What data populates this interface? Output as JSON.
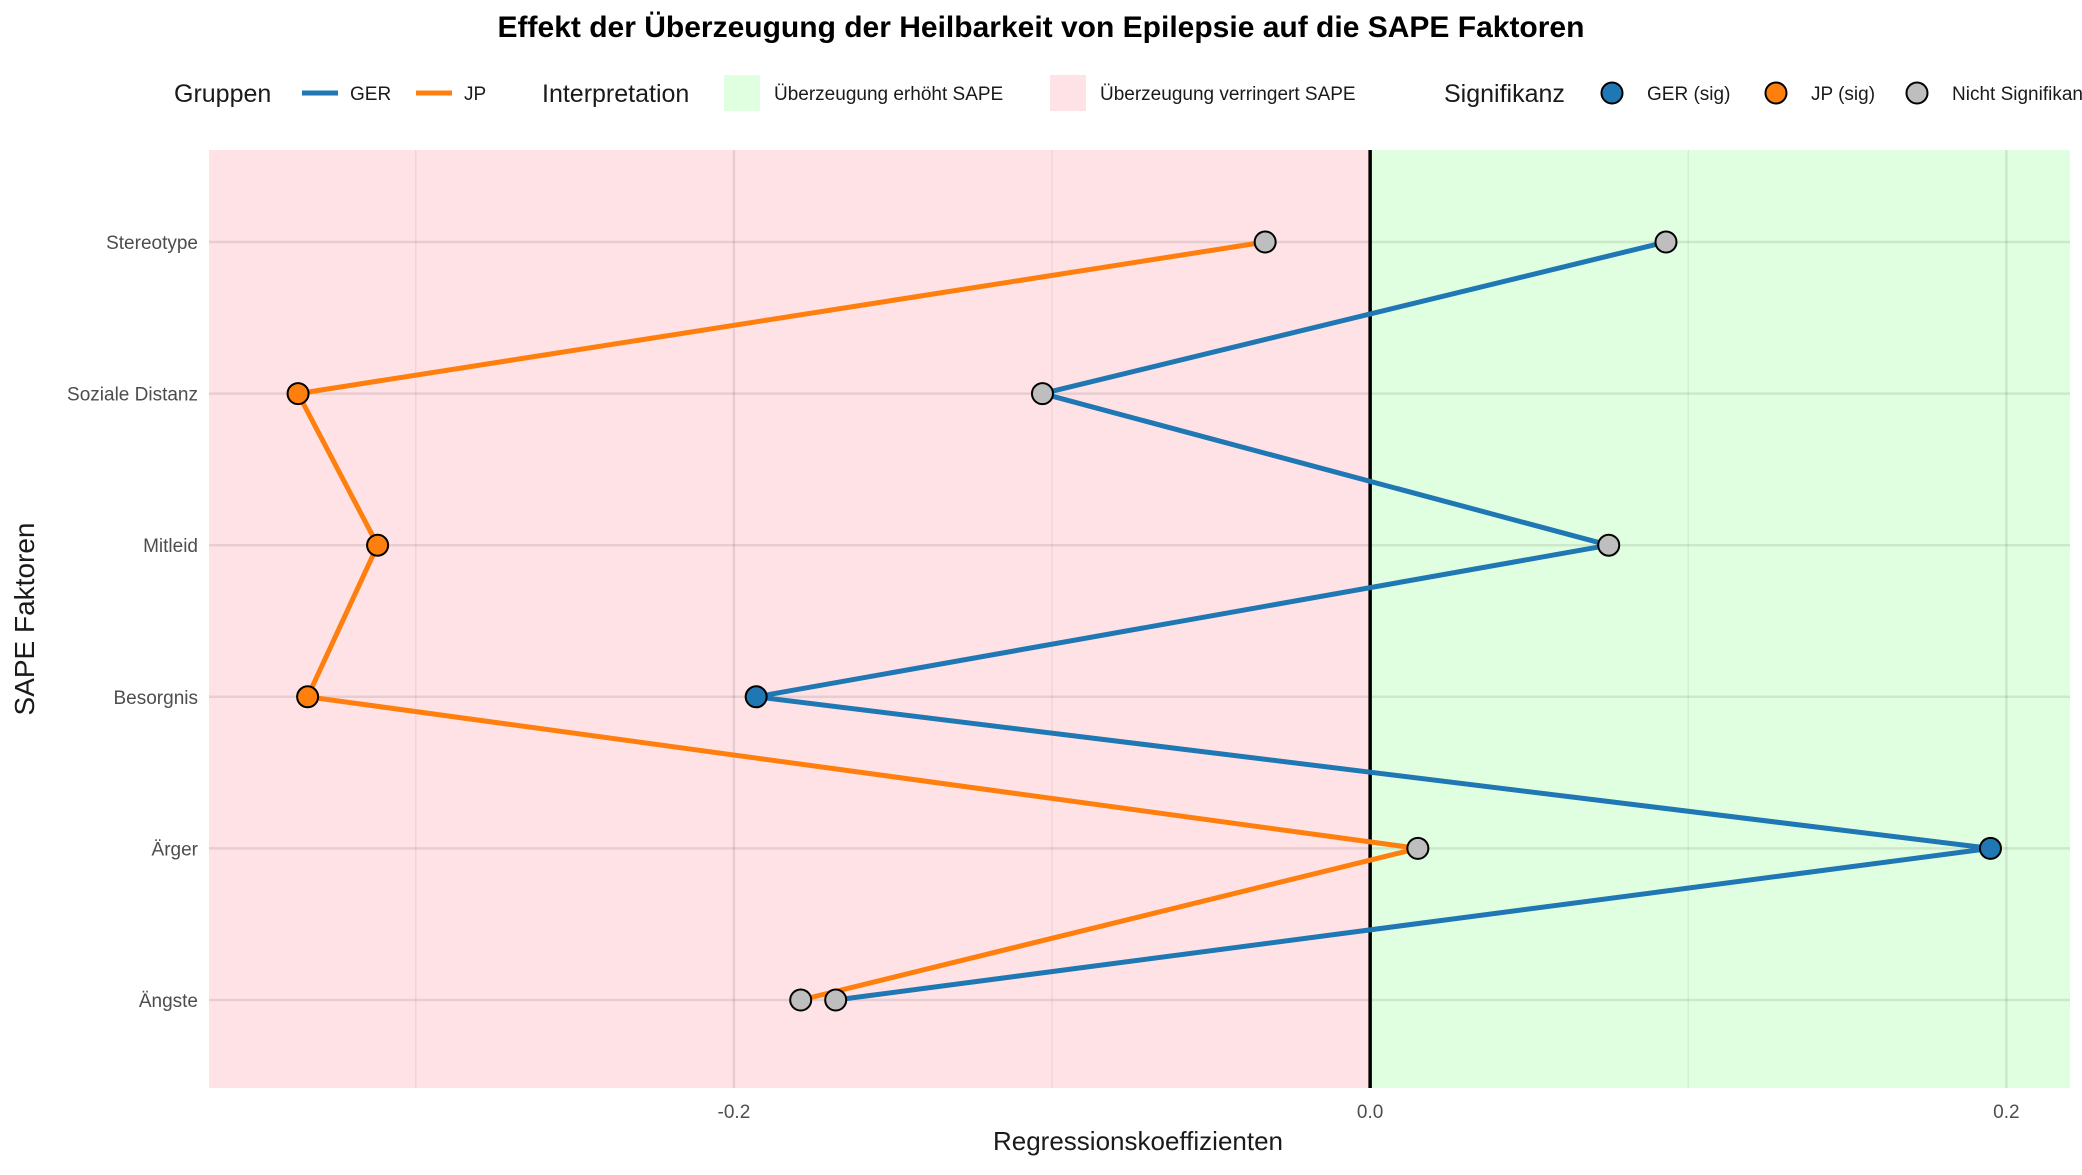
{
  "chart_data": {
    "type": "line",
    "title": "Effekt der Überzeugung der Heilbarkeit von Epilepsie auf die SAPE Faktoren",
    "xlabel": "Regressionskoeffizienten",
    "ylabel": "SAPE Faktoren",
    "xlim": [
      -0.365,
      0.22
    ],
    "x_ticks": [
      {
        "value": -0.2,
        "label": "-0.2"
      },
      {
        "value": 0.0,
        "label": "0.0"
      },
      {
        "value": 0.2,
        "label": "0.2"
      }
    ],
    "categories": [
      "Ängste",
      "Ärger",
      "Besorgnis",
      "Mitleid",
      "Soziale Distanz",
      "Stereotype"
    ],
    "series": [
      {
        "name": "GER",
        "color": "#1f77b4",
        "values": [
          -0.168,
          0.195,
          -0.193,
          0.075,
          -0.103,
          0.093
        ],
        "significant": [
          false,
          true,
          true,
          false,
          false,
          false
        ]
      },
      {
        "name": "JP",
        "color": "#ff7f0e",
        "values": [
          -0.179,
          0.015,
          -0.334,
          -0.312,
          -0.337,
          -0.033
        ],
        "significant": [
          false,
          false,
          true,
          true,
          true,
          false
        ]
      }
    ],
    "regions": [
      {
        "label": "Überzeugung erhöht SAPE",
        "color": "#e0ffe0",
        "side": "positive"
      },
      {
        "label": "Überzeugung verringert SAPE",
        "color": "#ffe2e5",
        "side": "negative"
      }
    ],
    "reference_line": 0,
    "grid": true,
    "legend_position": "top",
    "legend": {
      "groups_title": "Gruppen",
      "groups": [
        {
          "label": "GER",
          "color": "#1f77b4"
        },
        {
          "label": "JP",
          "color": "#ff7f0e"
        }
      ],
      "interpretation_title": "Interpretation",
      "interpretation": [
        {
          "label": "Überzeugung erhöht SAPE",
          "color": "#e0ffe0"
        },
        {
          "label": "Überzeugung verringert SAPE",
          "color": "#ffe2e5"
        }
      ],
      "significance_title": "Signifikanz",
      "significance": [
        {
          "label": "GER (sig)",
          "color": "#1f77b4"
        },
        {
          "label": "JP (sig)",
          "color": "#ff7f0e"
        },
        {
          "label": "Nicht Signifikant",
          "color": "#bebebe"
        }
      ]
    }
  }
}
